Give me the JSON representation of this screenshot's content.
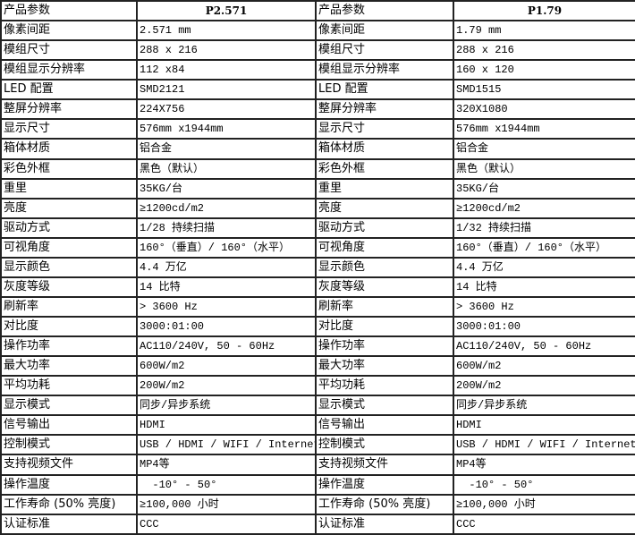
{
  "header": {
    "label": "产品参数",
    "left_model": "P2.571",
    "right_model": "P1.79"
  },
  "rows": [
    {
      "param": "像素间距",
      "left": "2.571 mm",
      "right": "1.79 mm"
    },
    {
      "param": "模组尺寸",
      "left": "288 x 216",
      "right": "288 x 216"
    },
    {
      "param": "模组显示分辨率",
      "left": "112 x84",
      "right": "160 x 120"
    },
    {
      "param": "LED 配置",
      "left": "SMD2121",
      "right": "SMD1515"
    },
    {
      "param": "整屏分辨率",
      "left": "224X756",
      "right": "320X1080"
    },
    {
      "param": "显示尺寸",
      "left": "576mm x1944mm",
      "right": "576mm x1944mm"
    },
    {
      "param": "箱体材质",
      "left": "铝合金",
      "right": "铝合金"
    },
    {
      "param": "彩色外框",
      "left": "黑色（默认）",
      "right": "黑色（默认）"
    },
    {
      "param": "重里",
      "left": "35KG/台",
      "right": "35KG/台"
    },
    {
      "param": "亮度",
      "left": "≥1200cd/m2",
      "right": "≥1200cd/m2"
    },
    {
      "param": "驱动方式",
      "left": "1/28 持续扫描",
      "right": "1/32 持续扫描"
    },
    {
      "param": "可视角度",
      "left": "160°（垂直）/ 160°（水平）",
      "right": "160°（垂直）/ 160°（水平）"
    },
    {
      "param": "显示颜色",
      "left": "4.4 万亿",
      "right": "4.4 万亿"
    },
    {
      "param": "灰度等级",
      "left": "14 比特",
      "right": "14 比特"
    },
    {
      "param": "刷新率",
      "left": "> 3600 Hz",
      "right": "> 3600 Hz"
    },
    {
      "param": "对比度",
      "left": "3000:01:00",
      "right": "3000:01:00"
    },
    {
      "param": "操作功率",
      "left": "AC110/240V, 50 - 60Hz",
      "right": "AC110/240V, 50 - 60Hz"
    },
    {
      "param": "最大功率",
      "left": "600W/m2",
      "right": "600W/m2"
    },
    {
      "param": "平均功耗",
      "left": "200W/m2",
      "right": "200W/m2"
    },
    {
      "param": "显示模式",
      "left": "同步/异步系统",
      "right": "同步/异步系统"
    },
    {
      "param": "信号输出",
      "left": "HDMI",
      "right": "HDMI"
    },
    {
      "param": "控制模式",
      "left": "USB / HDMI / WIFI / Internet",
      "right": "USB / HDMI / WIFI / Internet"
    },
    {
      "param": "支持视频文件",
      "left": "MP4等",
      "right": "MP4等"
    },
    {
      "param": "操作温度",
      "left": "  -10° - 50°",
      "right": "  -10° - 50°"
    },
    {
      "param": "工作寿命 (50% 亮度)",
      "left": "≥100,000 小时",
      "right": "≥100,000 小时"
    },
    {
      "param": "认证标准",
      "left": "CCC",
      "right": "CCC"
    }
  ]
}
